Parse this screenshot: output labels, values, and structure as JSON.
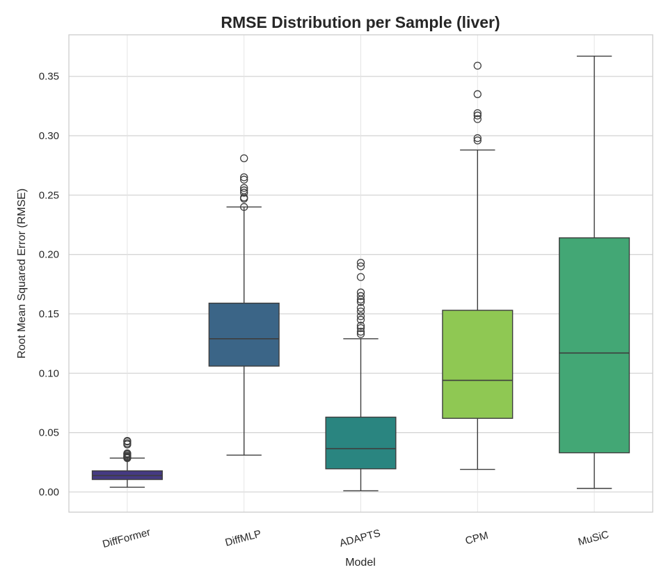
{
  "chart_data": {
    "type": "box",
    "title": "RMSE Distribution per Sample (liver)",
    "xlabel": "Model",
    "ylabel": "Root Mean Squared Error (RMSE)",
    "ylim": [
      -0.017,
      0.385
    ],
    "yticks": [
      0.0,
      0.05,
      0.1,
      0.15,
      0.2,
      0.25,
      0.3,
      0.35
    ],
    "ytick_labels": [
      "0.00",
      "0.05",
      "0.10",
      "0.15",
      "0.20",
      "0.25",
      "0.30",
      "0.35"
    ],
    "grid": true,
    "categories": [
      "DiffFormer",
      "DiffMLP",
      "ADAPTS",
      "CPM",
      "MuSiC"
    ],
    "boxes": [
      {
        "name": "DiffFormer",
        "color": "#453a83",
        "whisker_low": 0.004,
        "q1": 0.0105,
        "median": 0.0138,
        "q3": 0.0178,
        "whisker_high": 0.0285,
        "outliers": [
          0.0285,
          0.029,
          0.0295,
          0.03,
          0.031,
          0.032,
          0.0325,
          0.04,
          0.041,
          0.0425,
          0.043
        ]
      },
      {
        "name": "DiffMLP",
        "color": "#3b6587",
        "whisker_low": 0.031,
        "q1": 0.106,
        "median": 0.129,
        "q3": 0.159,
        "whisker_high": 0.24,
        "outliers": [
          0.24,
          0.247,
          0.248,
          0.252,
          0.254,
          0.256,
          0.263,
          0.265,
          0.281
        ]
      },
      {
        "name": "ADAPTS",
        "color": "#2a8580",
        "whisker_low": 0.001,
        "q1": 0.0195,
        "median": 0.0365,
        "q3": 0.063,
        "whisker_high": 0.129,
        "outliers": [
          0.133,
          0.135,
          0.138,
          0.14,
          0.145,
          0.148,
          0.152,
          0.155,
          0.16,
          0.162,
          0.165,
          0.168,
          0.181,
          0.19,
          0.193
        ]
      },
      {
        "name": "CPM",
        "color": "#8fc853",
        "whisker_low": 0.019,
        "q1": 0.062,
        "median": 0.094,
        "q3": 0.153,
        "whisker_high": 0.288,
        "outliers": [
          0.296,
          0.298,
          0.314,
          0.317,
          0.319,
          0.335,
          0.359
        ]
      },
      {
        "name": "MuSiC",
        "color": "#43a775",
        "whisker_low": 0.003,
        "q1": 0.033,
        "median": 0.117,
        "q3": 0.214,
        "whisker_high": 0.367,
        "outliers": []
      }
    ]
  }
}
